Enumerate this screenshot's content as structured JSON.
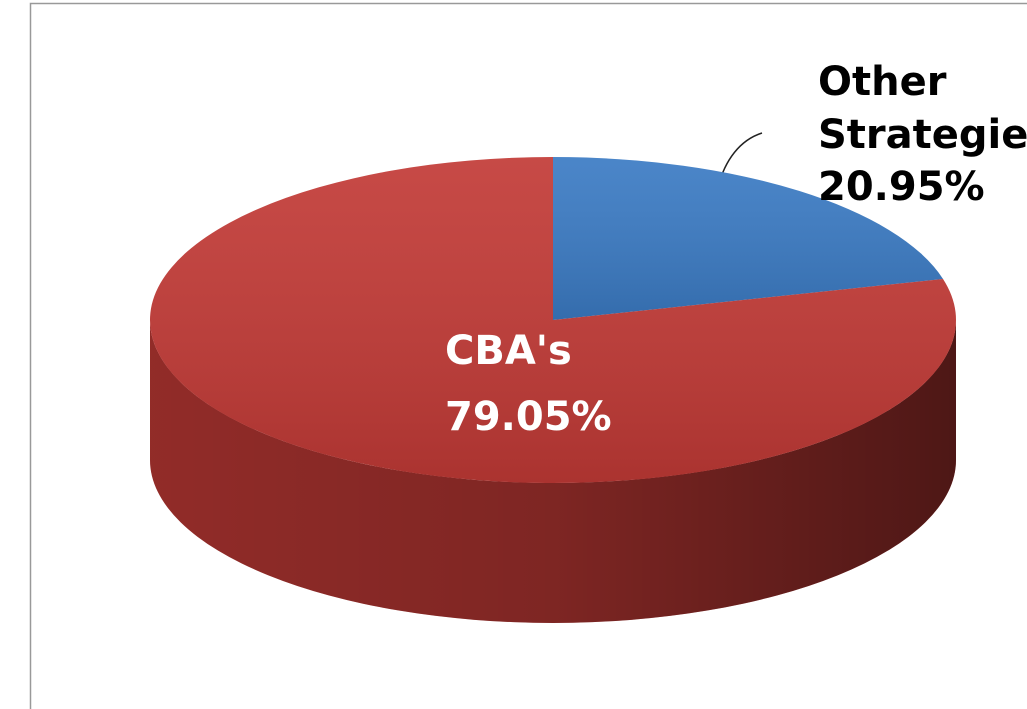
{
  "chart_data": {
    "type": "pie",
    "categories": [
      "Other Strategies",
      "CBA's"
    ],
    "values": [
      20.95,
      79.05
    ],
    "value_labels": [
      "20.95%",
      "79.05%"
    ],
    "colors": [
      "#3b7bc4",
      "#c23a36"
    ],
    "start_angle": 90,
    "direction": "clockwise",
    "style": "3d"
  }
}
